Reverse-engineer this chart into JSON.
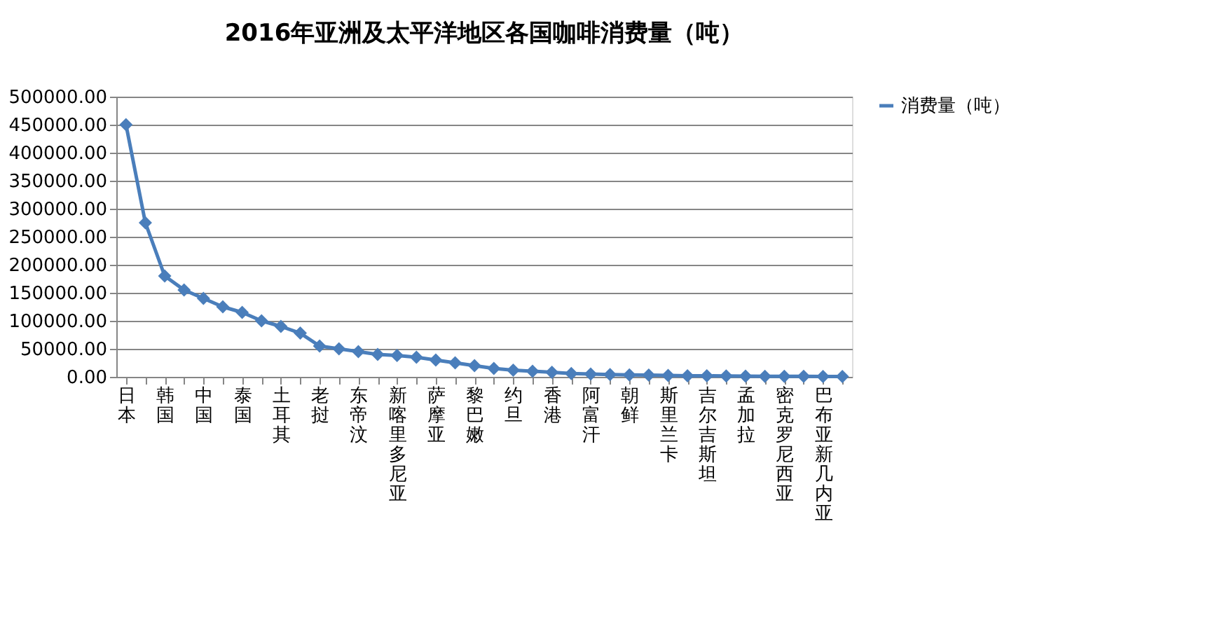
{
  "chart_data": {
    "type": "line",
    "title": "2016年亚洲及太平洋地区各国咖啡消费量（吨）",
    "categories": [
      "日本",
      null,
      "韩国",
      null,
      "中国",
      null,
      "泰国",
      null,
      "土耳其",
      null,
      "老挝",
      null,
      "东帝汶",
      null,
      "新喀里多尼亚",
      null,
      "萨摩亚",
      null,
      "黎巴嫩",
      null,
      "约旦",
      null,
      "香港",
      null,
      "阿富汗",
      null,
      "朝鲜",
      null,
      "斯里兰卡",
      null,
      "吉尔吉斯坦",
      null,
      "孟加拉",
      null,
      "密克罗尼西亚",
      null,
      "巴布亚新几内亚",
      null
    ],
    "series": [
      {
        "name": "消费量（吨）",
        "color": "#4a7ebb",
        "values": [
          450000,
          275000,
          180000,
          155000,
          140000,
          125000,
          115000,
          100000,
          90000,
          78000,
          55000,
          50000,
          45000,
          40000,
          38000,
          35000,
          30000,
          25000,
          20000,
          15000,
          12000,
          10000,
          8000,
          6000,
          5000,
          4000,
          3500,
          3000,
          2500,
          2000,
          1800,
          1500,
          1200,
          1000,
          900,
          800,
          600,
          500
        ]
      }
    ],
    "ylim": [
      0,
      500000
    ],
    "yticks": [
      {
        "value": 0,
        "label": "0.00"
      },
      {
        "value": 50000,
        "label": "50000.00"
      },
      {
        "value": 100000,
        "label": "100000.00"
      },
      {
        "value": 150000,
        "label": "150000.00"
      },
      {
        "value": 200000,
        "label": "200000.00"
      },
      {
        "value": 250000,
        "label": "250000.00"
      },
      {
        "value": 300000,
        "label": "300000.00"
      },
      {
        "value": 350000,
        "label": "350000.00"
      },
      {
        "value": 400000,
        "label": "400000.00"
      },
      {
        "value": 450000,
        "label": "450000.00"
      },
      {
        "value": 500000,
        "label": "500000.00"
      }
    ],
    "grid": "y",
    "legend": "right",
    "marker": "diamond",
    "line_style": "solid"
  }
}
